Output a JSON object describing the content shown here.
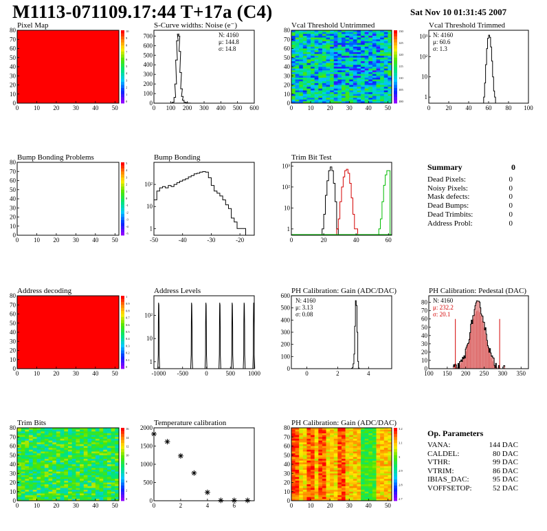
{
  "header": {
    "title": "M1113-071109.17:44 T+17a (C4)",
    "date": "Sat Nov 10 01:31:45 2007"
  },
  "colors": {
    "hist_line": "#000000",
    "trim_red": "#d40000",
    "trim_green": "#00bb00",
    "pedestal_fill": "#cc2222",
    "fit_red": "#d40000"
  },
  "summary": {
    "title": "Summary",
    "value": "0",
    "rows": [
      {
        "label": "Dead Pixels:",
        "value": "0"
      },
      {
        "label": "Noisy Pixels:",
        "value": "0"
      },
      {
        "label": "Mask defects:",
        "value": "0"
      },
      {
        "label": "Dead Bumps:",
        "value": "0"
      },
      {
        "label": "Dead Trimbits:",
        "value": "0"
      },
      {
        "label": "Address Probl:",
        "value": "0"
      }
    ]
  },
  "op_parameters": {
    "title": "Op. Parameters",
    "rows": [
      {
        "label": "VANA:",
        "value": "144 DAC"
      },
      {
        "label": "CALDEL:",
        "value": "80 DAC"
      },
      {
        "label": "VTHR:",
        "value": "99 DAC"
      },
      {
        "label": "VTRIM:",
        "value": "86 DAC"
      },
      {
        "label": "IBIAS_DAC:",
        "value": "95 DAC"
      },
      {
        "label": "VOFFSETOP:",
        "value": "52 DAC"
      }
    ]
  },
  "chart_data": [
    {
      "id": "pixel_map",
      "type": "heatmap",
      "title": "Pixel Map",
      "xlim": [
        0,
        52
      ],
      "ylim": [
        0,
        80
      ],
      "xticks": [
        0,
        10,
        20,
        30,
        40,
        50
      ],
      "yticks": [
        0,
        10,
        20,
        30,
        40,
        50,
        60,
        70,
        80
      ],
      "pattern": "uniform",
      "uniform_color": "#ff0000",
      "palette_labels": [
        "10",
        "9",
        "8",
        "7",
        "6",
        "5",
        "4",
        "3",
        "2",
        "1",
        "0"
      ]
    },
    {
      "id": "scurve_noise",
      "type": "histogram",
      "title": "S-Curve widths: Noise (e⁻)",
      "xlim": [
        0,
        600
      ],
      "ylim": [
        0,
        760
      ],
      "xticks": [
        0,
        100,
        200,
        300,
        400,
        500,
        600
      ],
      "yticks": [
        0,
        100,
        200,
        300,
        400,
        500,
        600,
        700
      ],
      "stats": [
        "N: 4160",
        "μ: 144.8",
        "σ: 14.8"
      ],
      "series": [
        {
          "color": "#000000",
          "x": [
            100,
            110,
            120,
            125,
            130,
            135,
            140,
            145,
            150,
            155,
            160,
            165,
            170,
            180,
            190,
            200,
            210
          ],
          "y": [
            2,
            10,
            60,
            200,
            450,
            650,
            720,
            700,
            540,
            320,
            150,
            70,
            30,
            10,
            5,
            2,
            1
          ]
        }
      ]
    },
    {
      "id": "vcal_untrimmed",
      "type": "heatmap",
      "title": "Vcal Threshold Untrimmed",
      "xlim": [
        0,
        52
      ],
      "ylim": [
        0,
        80
      ],
      "xticks": [
        0,
        10,
        20,
        30,
        40,
        50
      ],
      "yticks": [
        0,
        10,
        20,
        30,
        40,
        50,
        60,
        70,
        80
      ],
      "pattern": "noisy_cyan",
      "palette_labels": [
        "130",
        "125",
        "120",
        "115",
        "110",
        "105",
        "100"
      ]
    },
    {
      "id": "vcal_trimmed",
      "type": "histogram",
      "title": "Vcal Threshold Trimmed",
      "yscale": "log",
      "xlim": [
        0,
        100
      ],
      "ylim": [
        0.5,
        2000
      ],
      "xticks": [
        0,
        20,
        40,
        60,
        80,
        100
      ],
      "yticks": [
        1,
        10,
        100,
        1000
      ],
      "ytick_labels": [
        "1",
        "10",
        "10²",
        "10³"
      ],
      "stats": [
        "N: 4160",
        "μ: 60.6",
        "σ:  1.3"
      ],
      "series": [
        {
          "color": "#000000",
          "x": [
            55,
            56,
            57,
            58,
            59,
            60,
            61,
            62,
            63,
            64,
            65,
            66
          ],
          "y": [
            1,
            5,
            40,
            250,
            800,
            1150,
            900,
            300,
            60,
            10,
            2,
            1
          ]
        }
      ]
    },
    {
      "id": "bump_problems",
      "type": "heatmap",
      "title": "Bump Bonding Problems",
      "xlim": [
        0,
        52
      ],
      "ylim": [
        0,
        80
      ],
      "xticks": [
        0,
        10,
        20,
        30,
        40,
        50
      ],
      "yticks": [
        0,
        10,
        20,
        30,
        40,
        50,
        60,
        70,
        80
      ],
      "pattern": "empty",
      "palette_labels": [
        "5",
        "4",
        "3",
        "2",
        "1",
        "0",
        "-1",
        "-2",
        "-3",
        "-4",
        "-5"
      ]
    },
    {
      "id": "bump_bonding",
      "type": "histogram",
      "title": "Bump Bonding",
      "yscale": "log",
      "xlim": [
        -50,
        -15
      ],
      "ylim": [
        0.5,
        1000
      ],
      "xticks": [
        -50,
        -40,
        -30,
        -20
      ],
      "yticks": [
        1,
        10,
        100
      ],
      "ytick_labels": [
        "1",
        "10",
        "10²"
      ],
      "series": [
        {
          "color": "#000000",
          "x": [
            -50,
            -49,
            -48,
            -47,
            -46,
            -45,
            -44,
            -43,
            -42,
            -41,
            -40,
            -39,
            -38,
            -37,
            -36,
            -35,
            -34,
            -33,
            -32,
            -31,
            -30,
            -29,
            -28,
            -27,
            -26,
            -25,
            -24,
            -23,
            -22,
            -21,
            -20,
            -19
          ],
          "y": [
            20,
            50,
            70,
            80,
            70,
            90,
            80,
            100,
            120,
            140,
            160,
            180,
            220,
            250,
            300,
            320,
            360,
            380,
            360,
            200,
            90,
            50,
            40,
            30,
            20,
            12,
            8,
            3,
            2,
            1,
            1,
            1
          ]
        }
      ]
    },
    {
      "id": "trim_bit_test",
      "type": "histogram",
      "title": "Trim Bit Test",
      "yscale": "log",
      "xlim": [
        0,
        62
      ],
      "ylim": [
        0.5,
        1500
      ],
      "xticks": [
        0,
        20,
        40,
        60
      ],
      "yticks": [
        1,
        10,
        100,
        1000
      ],
      "ytick_labels": [
        "1",
        "10",
        "10²",
        "10³"
      ],
      "series": [
        {
          "color": "#000000",
          "x": [
            19,
            20,
            21,
            22,
            23,
            24,
            25,
            26,
            27,
            28
          ],
          "y": [
            1,
            5,
            40,
            200,
            600,
            900,
            600,
            150,
            20,
            1
          ]
        },
        {
          "color": "#d40000",
          "x": [
            28,
            29,
            30,
            31,
            32,
            33,
            34,
            35,
            36,
            37,
            38,
            39,
            40
          ],
          "y": [
            1,
            3,
            20,
            100,
            300,
            600,
            700,
            450,
            150,
            30,
            5,
            1,
            1
          ]
        },
        {
          "color": "#00bb00",
          "x": [
            54,
            55,
            56,
            57,
            58,
            59,
            60
          ],
          "y": [
            1,
            3,
            20,
            120,
            380,
            600,
            600
          ]
        }
      ]
    },
    {
      "id": "address_decoding",
      "type": "heatmap",
      "title": "Address decoding",
      "xlim": [
        0,
        52
      ],
      "ylim": [
        0,
        80
      ],
      "xticks": [
        0,
        10,
        20,
        30,
        40,
        50
      ],
      "yticks": [
        0,
        10,
        20,
        30,
        40,
        50,
        60,
        70,
        80
      ],
      "pattern": "uniform",
      "uniform_color": "#ff0000",
      "palette_labels": [
        "1",
        "0.9",
        "0.8",
        "0.7",
        "0.6",
        "0.5",
        "0.4",
        "0.3",
        "0.2",
        "0.1",
        "0"
      ]
    },
    {
      "id": "address_levels",
      "type": "histogram",
      "title": "Address Levels",
      "yscale": "log",
      "xlim": [
        -1100,
        1000
      ],
      "ylim": [
        0.5,
        700
      ],
      "xticks": [
        -1000,
        -500,
        0,
        500,
        1000
      ],
      "yticks": [
        1,
        10,
        100
      ],
      "ytick_labels": [
        "1",
        "10",
        "10²"
      ],
      "series": [
        {
          "color": "#000000",
          "peaks": [
            -1000,
            -310,
            -10,
            280,
            540,
            790,
            990
          ],
          "peak_height": 350
        }
      ]
    },
    {
      "id": "ph_gain",
      "type": "histogram",
      "title": "PH Calibration: Gain (ADC/DAC)",
      "xlim": [
        -1,
        5.5
      ],
      "ylim": [
        0,
        600
      ],
      "xticks": [
        0,
        2,
        4
      ],
      "yticks": [
        0,
        100,
        200,
        300,
        400,
        500,
        600
      ],
      "stats": [
        "N: 4160",
        "μ: 3.13",
        "σ: 0.08"
      ],
      "series": [
        {
          "color": "#000000",
          "x": [
            2.9,
            2.95,
            3.0,
            3.05,
            3.1,
            3.15,
            3.2,
            3.25,
            3.3,
            3.35
          ],
          "y": [
            2,
            10,
            40,
            120,
            350,
            560,
            520,
            300,
            60,
            5
          ]
        }
      ]
    },
    {
      "id": "ph_pedestal",
      "type": "histogram",
      "title": "PH Calibration: Pedestal (DAC)",
      "xlim": [
        100,
        370
      ],
      "ylim": [
        0,
        88
      ],
      "xticks": [
        100,
        150,
        200,
        250,
        300,
        350
      ],
      "yticks": [
        0,
        10,
        20,
        30,
        40,
        50,
        60,
        70,
        80
      ],
      "stats": [
        "N: 4160",
        "μ: 232.2",
        "σ: 20.1"
      ],
      "stats_colors": [
        "#000000",
        "#d40000",
        "#d40000"
      ],
      "cut_lines": [
        172,
        292
      ],
      "series": [
        {
          "color": "#000000",
          "fill": "#cc2222",
          "mu": 232.2,
          "sigma": 20.1,
          "peak": 78,
          "range": [
            165,
            305
          ]
        }
      ]
    },
    {
      "id": "trim_bits",
      "type": "heatmap",
      "title": "Trim Bits",
      "xlim": [
        0,
        52
      ],
      "ylim": [
        0,
        80
      ],
      "xticks": [
        0,
        10,
        20,
        30,
        40,
        50
      ],
      "yticks": [
        0,
        10,
        20,
        30,
        40,
        50,
        60,
        70,
        80
      ],
      "pattern": "noisy_green",
      "palette_labels": [
        "16",
        "14",
        "12",
        "10",
        "8",
        "6",
        "4",
        "2",
        "0"
      ]
    },
    {
      "id": "temperature_calibration",
      "type": "scatter",
      "title": "Temperature calibration",
      "xlim": [
        0,
        7.5
      ],
      "ylim": [
        0,
        2000
      ],
      "xticks": [
        0,
        2,
        4,
        6
      ],
      "yticks": [
        0,
        500,
        1000,
        1500,
        2000
      ],
      "x": [
        0,
        1,
        2,
        3,
        4,
        5,
        6,
        7
      ],
      "y": [
        1830,
        1620,
        1230,
        760,
        230,
        10,
        10,
        10
      ]
    },
    {
      "id": "ph_gain_map",
      "type": "heatmap",
      "title": "PH Calibration: Gain (ADC/DAC)",
      "xlim": [
        0,
        52
      ],
      "ylim": [
        0,
        80
      ],
      "xticks": [
        0,
        10,
        20,
        30,
        40,
        50
      ],
      "yticks": [
        0,
        10,
        20,
        30,
        40,
        50,
        60,
        70,
        80
      ],
      "pattern": "striped_gain",
      "palette_labels": [
        "3.2",
        "3.1",
        "3",
        "2.9",
        "2.8",
        "2.7"
      ]
    }
  ]
}
